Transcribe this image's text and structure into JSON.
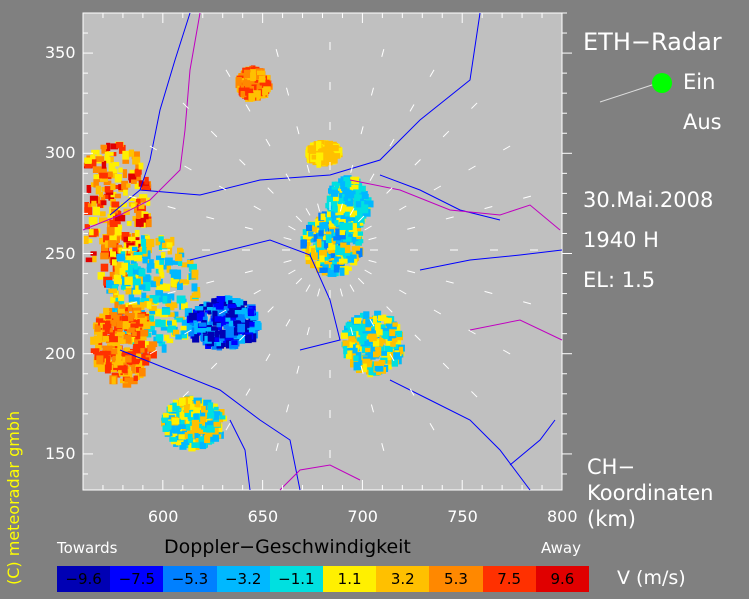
{
  "title": "ETH−Radar",
  "legend": {
    "on_label": "Ein",
    "off_label": "Aus",
    "on_color": "#00ff00"
  },
  "date": "30.Mai.2008",
  "time": "1940 H",
  "elevation": "EL:  1.5",
  "coords_label": [
    "CH−",
    "Koordinaten",
    "(km)"
  ],
  "copyright": "(C)  meteoradar gmbh",
  "axes": {
    "x_ticks": [
      "600",
      "650",
      "700",
      "750",
      "800"
    ],
    "y_ticks": [
      "350",
      "300",
      "250",
      "200",
      "150"
    ],
    "x_range": [
      560,
      800
    ],
    "y_range": [
      132,
      370
    ]
  },
  "colorbar": {
    "title": "Doppler−Geschwindigkeit",
    "left_label": "Towards",
    "right_label": "Away",
    "unit": "V  (m/s)",
    "levels": [
      {
        "label": "−9.6",
        "color": "#0000b4"
      },
      {
        "label": "−7.5",
        "color": "#0000ff"
      },
      {
        "label": "−5.3",
        "color": "#0080ff"
      },
      {
        "label": "−3.2",
        "color": "#00b8ff"
      },
      {
        "label": "−1.1",
        "color": "#00e0e0"
      },
      {
        "label": "1.1",
        "color": "#fff000"
      },
      {
        "label": "3.2",
        "color": "#ffc000"
      },
      {
        "label": "5.3",
        "color": "#ff8800"
      },
      {
        "label": "7.5",
        "color": "#ff3000"
      },
      {
        "label": "9.6",
        "color": "#e00000"
      }
    ]
  },
  "colors": {
    "background": "#808080",
    "plot_bg": "#c0c0c0",
    "rivers": "#0000ff",
    "border": "#c000c0",
    "copyright": "#ffff00"
  }
}
